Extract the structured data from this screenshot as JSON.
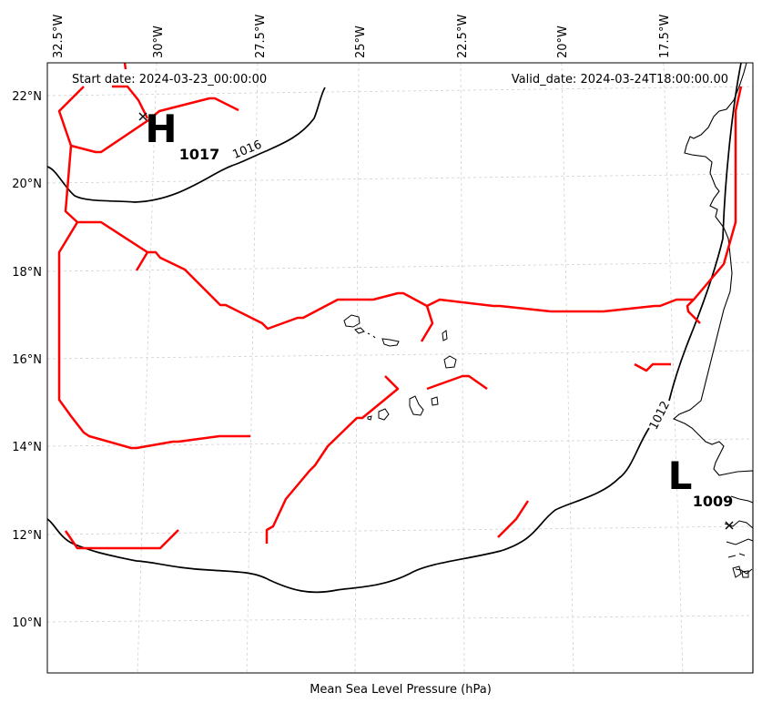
{
  "map": {
    "start_date": "Start date: 2024-03-23_00:00:00",
    "valid_date": "Valid_date: 2024-03-24T18:00:00.00",
    "xlabel": "Mean Sea Level Pressure (hPa)",
    "lon_labels": [
      "32.5°W",
      "30°W",
      "27.5°W",
      "25°W",
      "22.5°W",
      "20°W",
      "17.5°W"
    ],
    "lat_labels": [
      "22°N",
      "20°N",
      "18°N",
      "16°N",
      "14°N",
      "12°N",
      "10°N"
    ],
    "contour_labels": [
      "1016",
      "1012"
    ],
    "colors": {
      "isobar": "#000000",
      "trough": "#ff0000",
      "grid": "#cccccc",
      "coast": "#000000"
    }
  },
  "centers": [
    {
      "type": "high",
      "letter": "H",
      "value": "1017"
    },
    {
      "type": "low",
      "letter": "L",
      "value": "1009"
    }
  ]
}
